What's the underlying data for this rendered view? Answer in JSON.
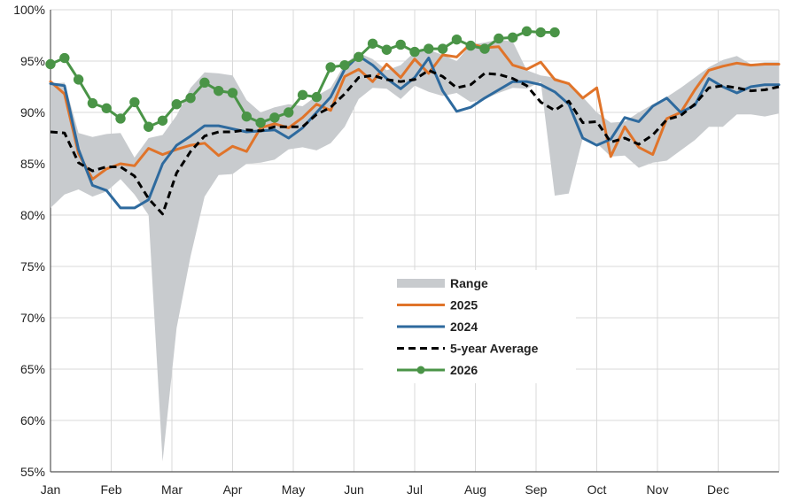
{
  "chart_data": {
    "type": "line",
    "title": "",
    "xlabel": "",
    "ylabel": "",
    "ylim": [
      55,
      100
    ],
    "y_ticks": [
      "55%",
      "60%",
      "65%",
      "70%",
      "75%",
      "80%",
      "85%",
      "90%",
      "95%",
      "100%"
    ],
    "x_tick_labels": [
      "Jan",
      "Feb",
      "Mar",
      "Apr",
      "May",
      "Jun",
      "Jul",
      "Aug",
      "Sep",
      "Oct",
      "Nov",
      "Dec"
    ],
    "x_unit": "week of year",
    "x_range": [
      1,
      53
    ],
    "grid": "vertical and horizontal",
    "legend_position": "center-bottom",
    "colors": {
      "range": "#c8cbce",
      "s2025": "#e0742a",
      "s2024": "#2e6a9e",
      "avg": "#000000",
      "s2026": "#4a9447",
      "grid": "#d9d9d9"
    },
    "series": [
      {
        "name": "Range",
        "kind": "band",
        "x": [
          1,
          2,
          3,
          4,
          5,
          6,
          7,
          8,
          9,
          10,
          11,
          12,
          13,
          14,
          15,
          16,
          17,
          18,
          19,
          20,
          21,
          22,
          23,
          24,
          25,
          26,
          27,
          28,
          29,
          30,
          31,
          32,
          33,
          34,
          35,
          36,
          37,
          38,
          39,
          40,
          41,
          42,
          43,
          44,
          45,
          46,
          47,
          48,
          49,
          50,
          51,
          52,
          53
        ],
        "low": [
          80.7,
          82.0,
          82.5,
          81.8,
          82.3,
          83.5,
          82.0,
          80.0,
          56.0,
          69.0,
          76.0,
          81.8,
          83.9,
          84.0,
          85.0,
          85.1,
          85.4,
          86.4,
          86.6,
          86.3,
          87.0,
          88.6,
          91.3,
          92.4,
          92.3,
          91.3,
          92.6,
          92.0,
          91.6,
          91.9,
          91.0,
          91.3,
          91.9,
          92.4,
          92.3,
          93.0,
          81.9,
          82.1,
          87.5,
          87.0,
          85.7,
          85.8,
          84.6,
          85.1,
          85.3,
          86.3,
          87.3,
          88.6,
          88.6,
          89.8,
          89.8,
          89.6,
          89.9
        ],
        "high": [
          92.8,
          92.9,
          88.0,
          87.6,
          87.9,
          88.0,
          85.6,
          87.5,
          87.8,
          89.7,
          92.4,
          93.9,
          93.8,
          93.6,
          91.2,
          90.0,
          90.5,
          90.8,
          90.6,
          91.6,
          92.4,
          94.7,
          95.8,
          95.2,
          94.1,
          94.6,
          95.9,
          96.1,
          95.6,
          95.0,
          96.6,
          96.8,
          97.1,
          96.9,
          94.1,
          93.6,
          93.4,
          92.9,
          91.5,
          90.0,
          89.0,
          89.1,
          90.0,
          90.8,
          91.5,
          92.4,
          93.4,
          94.4,
          95.1,
          95.5,
          94.7,
          94.9,
          94.9
        ]
      },
      {
        "name": "2025",
        "x": [
          1,
          2,
          3,
          4,
          5,
          6,
          7,
          8,
          9,
          10,
          11,
          12,
          13,
          14,
          15,
          16,
          17,
          18,
          19,
          20,
          21,
          22,
          23,
          24,
          25,
          26,
          27,
          28,
          29,
          30,
          31,
          32,
          33,
          34,
          35,
          36,
          37,
          38,
          39,
          40,
          41,
          42,
          43,
          44,
          45,
          46,
          47,
          48,
          49,
          50,
          51,
          52,
          53
        ],
        "values": [
          93.0,
          91.8,
          86.0,
          83.5,
          84.5,
          85.0,
          84.8,
          86.5,
          85.9,
          86.4,
          86.8,
          87.0,
          85.8,
          86.7,
          86.2,
          88.5,
          88.9,
          88.5,
          89.5,
          90.8,
          90.2,
          93.5,
          94.2,
          93.0,
          94.7,
          93.4,
          95.2,
          93.8,
          95.6,
          95.4,
          96.7,
          96.3,
          96.4,
          94.6,
          94.2,
          94.9,
          93.2,
          92.8,
          91.4,
          92.4,
          85.7,
          88.6,
          86.6,
          85.9,
          89.4,
          90.0,
          92.2,
          94.1,
          94.5,
          94.8,
          94.6,
          94.7,
          94.7
        ]
      },
      {
        "name": "2024",
        "x": [
          1,
          2,
          3,
          4,
          5,
          6,
          7,
          8,
          9,
          10,
          11,
          12,
          13,
          14,
          15,
          16,
          17,
          18,
          19,
          20,
          21,
          22,
          23,
          24,
          25,
          26,
          27,
          28,
          29,
          30,
          31,
          32,
          33,
          34,
          35,
          36,
          37,
          38,
          39,
          40,
          41,
          42,
          43,
          44,
          45,
          46,
          47,
          48,
          49,
          50,
          51,
          52,
          53
        ],
        "values": [
          92.8,
          92.6,
          86.4,
          82.9,
          82.4,
          80.7,
          80.7,
          81.5,
          85.0,
          86.8,
          87.7,
          88.7,
          88.7,
          88.4,
          88.1,
          88.2,
          88.3,
          87.5,
          88.5,
          90.0,
          91.5,
          94.2,
          95.5,
          94.6,
          93.3,
          92.3,
          93.4,
          95.3,
          92.1,
          90.1,
          90.5,
          91.4,
          92.2,
          93.0,
          93.0,
          92.7,
          92.0,
          90.8,
          87.5,
          86.8,
          87.4,
          89.5,
          89.1,
          90.6,
          91.4,
          90.0,
          90.7,
          93.3,
          92.5,
          91.9,
          92.5,
          92.7,
          92.7
        ]
      },
      {
        "name": "5-year Average",
        "dashed": true,
        "x": [
          1,
          2,
          3,
          4,
          5,
          6,
          7,
          8,
          9,
          10,
          11,
          12,
          13,
          14,
          15,
          16,
          17,
          18,
          19,
          20,
          21,
          22,
          23,
          24,
          25,
          26,
          27,
          28,
          29,
          30,
          31,
          32,
          33,
          34,
          35,
          36,
          37,
          38,
          39,
          40,
          41,
          42,
          43,
          44,
          45,
          46,
          47,
          48,
          49,
          50,
          51,
          52,
          53
        ],
        "values": [
          88.1,
          88.0,
          85.1,
          84.3,
          84.7,
          84.7,
          83.8,
          81.6,
          80.1,
          84.1,
          86.2,
          87.7,
          88.1,
          88.1,
          88.3,
          88.2,
          88.6,
          88.6,
          88.6,
          89.8,
          90.5,
          91.8,
          93.4,
          93.6,
          93.2,
          93.0,
          93.2,
          94.1,
          93.5,
          92.4,
          92.7,
          93.8,
          93.7,
          93.3,
          92.6,
          91.0,
          90.2,
          91.1,
          89.0,
          89.1,
          87.1,
          87.5,
          86.9,
          87.8,
          89.3,
          89.7,
          90.8,
          92.4,
          92.6,
          92.4,
          92.1,
          92.2,
          92.5
        ]
      },
      {
        "name": "2026",
        "markers": true,
        "x": [
          1,
          2,
          3,
          4,
          5,
          6,
          7,
          8,
          9,
          10,
          11,
          12,
          13,
          14,
          15,
          16,
          17,
          18,
          19,
          20,
          21,
          22,
          23,
          24,
          25,
          26,
          27,
          28,
          29,
          30,
          31,
          32,
          33,
          34,
          35,
          36,
          37
        ],
        "values": [
          94.7,
          95.3,
          93.2,
          90.9,
          90.4,
          89.4,
          91.0,
          88.6,
          89.2,
          90.8,
          91.4,
          92.9,
          92.1,
          91.9,
          89.6,
          89.0,
          89.5,
          90.0,
          91.7,
          91.5,
          94.4,
          94.6,
          95.4,
          96.7,
          96.1,
          96.6,
          95.9,
          96.2,
          96.2,
          97.1,
          96.5,
          96.2,
          97.2,
          97.3,
          97.9,
          97.8,
          97.8
        ]
      }
    ]
  }
}
